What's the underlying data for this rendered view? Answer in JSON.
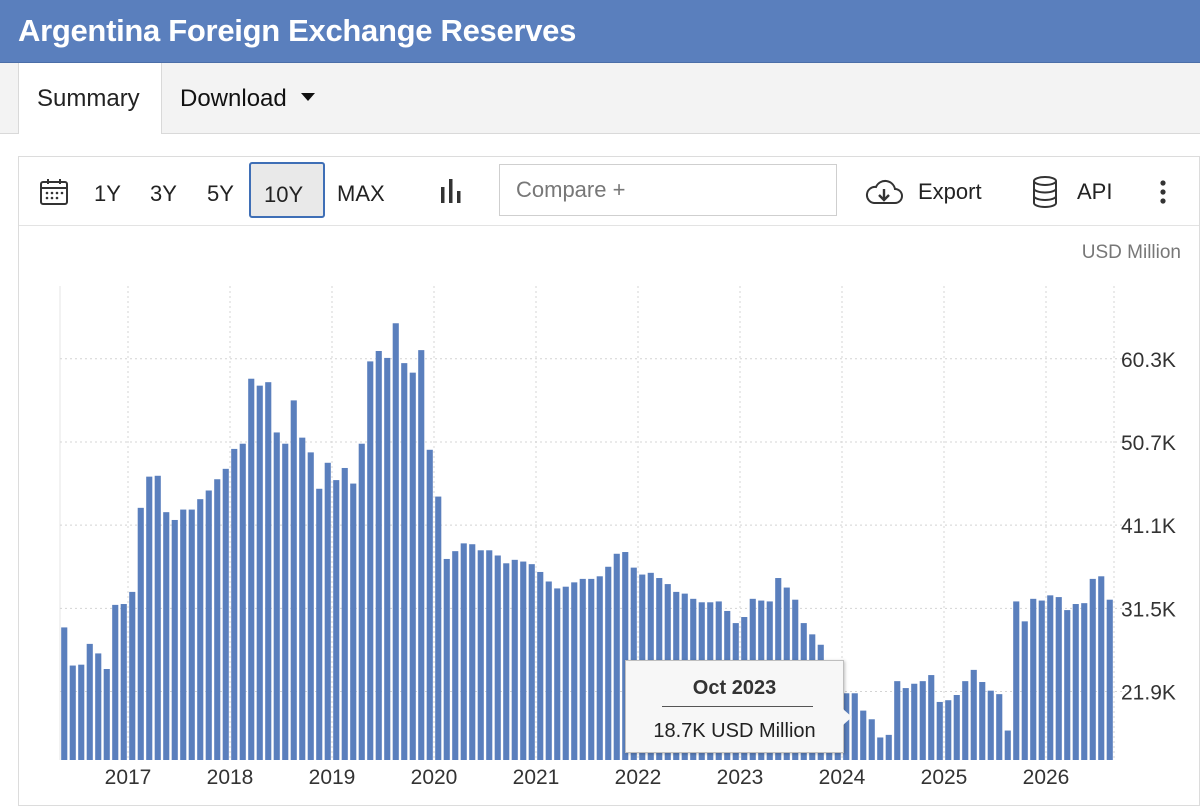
{
  "title": "Argentina Foreign Exchange Reserves",
  "tabs": {
    "summary": "Summary",
    "download": "Download"
  },
  "toolbar": {
    "ranges": [
      "1Y",
      "3Y",
      "5Y",
      "10Y",
      "MAX"
    ],
    "active_range": "10Y",
    "compare_placeholder": "Compare +",
    "export_label": "Export",
    "api_label": "API"
  },
  "tooltip": {
    "date": "Oct 2023",
    "value": "18.7K USD Million"
  },
  "chart_data": {
    "type": "bar",
    "unit": "USD Million",
    "bar_color": "#5a7fbd",
    "x_start": "2016-05",
    "x_ticks": [
      "2017",
      "2018",
      "2019",
      "2020",
      "2021",
      "2022",
      "2023",
      "2024",
      "2025",
      "2026"
    ],
    "y_ticks": [
      "21.9K",
      "31.5K",
      "41.1K",
      "50.7K",
      "60.3K"
    ],
    "y_tick_values": [
      21900,
      31500,
      41100,
      50700,
      60300
    ],
    "ylim": [
      14000,
      68700
    ],
    "grid": true,
    "values": [
      29300,
      24900,
      25000,
      27400,
      26300,
      24500,
      31900,
      32000,
      33400,
      43100,
      46700,
      46800,
      42600,
      41700,
      42900,
      42900,
      44100,
      45100,
      46400,
      47600,
      49900,
      50500,
      58000,
      57200,
      57600,
      51800,
      50500,
      55500,
      51200,
      49500,
      45300,
      48300,
      46300,
      47700,
      45900,
      50500,
      60000,
      61200,
      60400,
      64400,
      59800,
      58700,
      61300,
      49800,
      44400,
      37200,
      38100,
      39000,
      38900,
      38200,
      38200,
      37600,
      36700,
      37100,
      36900,
      36600,
      35700,
      34600,
      33800,
      34000,
      34500,
      34900,
      34900,
      35200,
      36300,
      37800,
      38000,
      36200,
      35400,
      35600,
      35000,
      34300,
      33400,
      33200,
      32600,
      32200,
      32200,
      32300,
      31200,
      29800,
      30500,
      32600,
      32400,
      32300,
      35000,
      33900,
      32500,
      29800,
      28500,
      27300,
      25300,
      22300,
      21700,
      21700,
      19700,
      18700,
      16600,
      16900,
      23100,
      22300,
      22800,
      23100,
      23800,
      20700,
      20900,
      21500,
      23100,
      24400,
      23000,
      22000,
      21600,
      17400,
      32300,
      30000,
      32600,
      32400,
      33000,
      32800,
      31300,
      32000,
      32100,
      34900,
      35200,
      32500
    ]
  }
}
